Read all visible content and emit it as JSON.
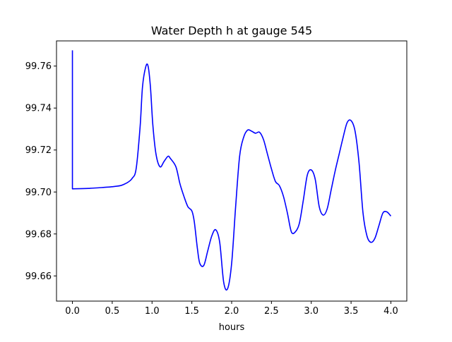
{
  "chart_data": {
    "type": "line",
    "title": "Water Depth h at gauge 545",
    "xlabel": "hours",
    "ylabel": "",
    "xlim": [
      -0.2,
      4.2
    ],
    "ylim": [
      99.648,
      99.772
    ],
    "xticks": [
      0.0,
      0.5,
      1.0,
      1.5,
      2.0,
      2.5,
      3.0,
      3.5,
      4.0
    ],
    "xtick_labels": [
      "0.0",
      "0.5",
      "1.0",
      "1.5",
      "2.0",
      "2.5",
      "3.0",
      "3.5",
      "4.0"
    ],
    "yticks": [
      99.66,
      99.68,
      99.7,
      99.72,
      99.74,
      99.76
    ],
    "ytick_labels": [
      "99.66",
      "99.68",
      "99.70",
      "99.72",
      "99.74",
      "99.76"
    ],
    "grid": false,
    "series": [
      {
        "color": "#0000ff",
        "x": [
          0.0,
          0.0,
          0.2,
          0.4,
          0.5,
          0.6,
          0.65,
          0.7,
          0.75,
          0.8,
          0.85,
          0.88,
          0.92,
          0.95,
          0.98,
          1.01,
          1.05,
          1.1,
          1.15,
          1.2,
          1.23,
          1.3,
          1.35,
          1.4,
          1.45,
          1.5,
          1.53,
          1.57,
          1.6,
          1.65,
          1.7,
          1.75,
          1.8,
          1.85,
          1.9,
          1.95,
          2.0,
          2.05,
          2.1,
          2.15,
          2.2,
          2.25,
          2.3,
          2.35,
          2.4,
          2.45,
          2.5,
          2.55,
          2.6,
          2.65,
          2.7,
          2.75,
          2.8,
          2.85,
          2.9,
          2.95,
          3.0,
          3.05,
          3.1,
          3.15,
          3.2,
          3.25,
          3.3,
          3.35,
          3.4,
          3.45,
          3.5,
          3.55,
          3.6,
          3.65,
          3.7,
          3.75,
          3.8,
          3.85,
          3.9,
          3.95,
          4.0
        ],
        "y": [
          99.7675,
          99.7015,
          99.7017,
          99.7022,
          99.7025,
          99.703,
          99.7037,
          99.7047,
          99.7065,
          99.711,
          99.731,
          99.75,
          99.7595,
          99.76,
          99.75,
          99.732,
          99.718,
          99.712,
          99.7145,
          99.717,
          99.716,
          99.712,
          99.704,
          99.698,
          99.693,
          99.691,
          99.686,
          99.673,
          99.666,
          99.665,
          99.672,
          99.679,
          99.682,
          99.676,
          99.657,
          99.654,
          99.666,
          99.693,
          99.717,
          99.726,
          99.7295,
          99.729,
          99.728,
          99.7285,
          99.725,
          99.718,
          99.711,
          99.705,
          99.703,
          99.698,
          99.69,
          99.681,
          99.681,
          99.685,
          99.696,
          99.708,
          99.7105,
          99.706,
          99.693,
          99.689,
          99.692,
          99.701,
          99.71,
          99.718,
          99.726,
          99.733,
          99.734,
          99.729,
          99.714,
          99.69,
          99.679,
          99.676,
          99.678,
          99.684,
          99.69,
          99.6905,
          99.6885
        ]
      }
    ]
  }
}
